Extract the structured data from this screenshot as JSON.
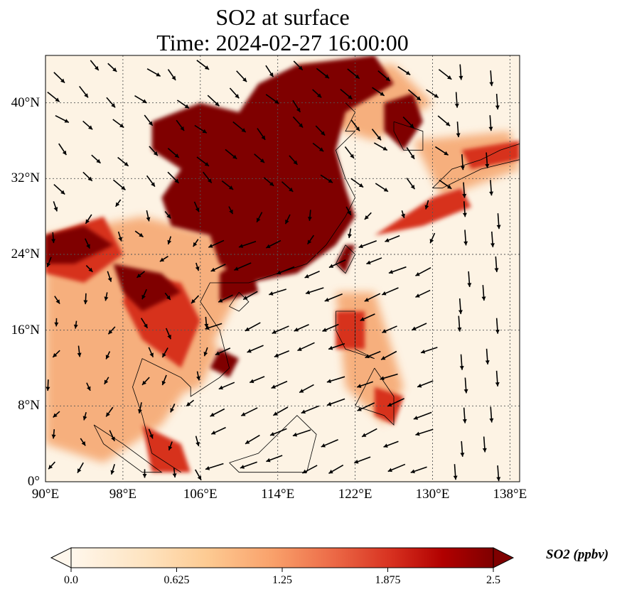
{
  "title": {
    "line1": "SO2 at surface",
    "line2": "Time: 2024-02-27 16:00:00"
  },
  "map": {
    "variable": "SO2",
    "lon_range": [
      90,
      139
    ],
    "lat_range": [
      0,
      45
    ],
    "lon_ticks": [
      {
        "value": 90,
        "label": "90°E"
      },
      {
        "value": 98,
        "label": "98°E"
      },
      {
        "value": 106,
        "label": "106°E"
      },
      {
        "value": 114,
        "label": "114°E"
      },
      {
        "value": 122,
        "label": "122°E"
      },
      {
        "value": 130,
        "label": "130°E"
      },
      {
        "value": 138,
        "label": "138°E"
      }
    ],
    "lat_ticks": [
      {
        "value": 0,
        "label": "0°"
      },
      {
        "value": 8,
        "label": "8°N"
      },
      {
        "value": 16,
        "label": "16°N"
      },
      {
        "value": 24,
        "label": "24°N"
      },
      {
        "value": 32,
        "label": "32°N"
      },
      {
        "value": 40,
        "label": "40°N"
      }
    ],
    "gridlines": true,
    "overlays": [
      "coastlines",
      "country-borders",
      "wind-vectors"
    ]
  },
  "colorbar": {
    "label": "SO2 (ppbv)",
    "min": 0.0,
    "max": 2.5,
    "extend": "both",
    "colormap": "OrRd",
    "ticks": [
      {
        "value": 0.0,
        "label": "0.0"
      },
      {
        "value": 0.625,
        "label": "0.625"
      },
      {
        "value": 1.25,
        "label": "1.25"
      },
      {
        "value": 1.875,
        "label": "1.875"
      },
      {
        "value": 2.5,
        "label": "2.5"
      }
    ]
  },
  "colors": {
    "background": "#fdf3e4",
    "low": "#fff7ec",
    "mid": "#f5a46c",
    "high": "#d7301f",
    "max": "#7f0000"
  }
}
